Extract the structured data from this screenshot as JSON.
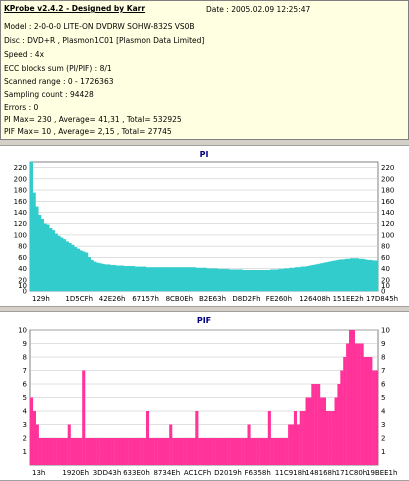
{
  "header": {
    "title": "KProbe v2.4.2 - Designed by Karr",
    "date": "Date : 2005.02.09 12:25:47",
    "lines": [
      "Model : 2-0-0-0 LITE-ON DVDRW SOHW-832S  VS0B",
      "Disc : DVD+R , Plasmon1C01 [Plasmon Data Limited]",
      "Speed : 4x",
      "ECC blocks sum (PI/PIF) : 8/1",
      "Scanned range : 0 - 1726363",
      "Sampling count : 94428",
      "Errors : 0",
      "PI Max= 230 , Average= 41,31 , Total= 532925",
      "PIF Max= 10 , Average= 2,15 , Total= 27745"
    ]
  },
  "colors": {
    "pi_fill": "#33cccc",
    "pif_fill": "#ff3399",
    "grid": "#c0c0c0",
    "title": "#000080"
  },
  "chart_data": [
    {
      "type": "area",
      "title": "PI",
      "ylim": [
        0,
        230
      ],
      "y_ticks": [
        "0",
        "10",
        "20",
        "40",
        "60",
        "80",
        "100",
        "120",
        "140",
        "160",
        "180",
        "200",
        "220"
      ],
      "x_tick_labels": [
        "129h",
        "1D5CFh",
        "42E26h",
        "67157h",
        "8CB0Eh",
        "B2E63h",
        "D8D2Fh",
        "FE260h",
        "126408h",
        "151EE2h",
        "17D845h"
      ],
      "grid": true,
      "values": [
        230,
        175,
        150,
        135,
        128,
        120,
        118,
        112,
        108,
        102,
        98,
        95,
        92,
        88,
        85,
        82,
        78,
        75,
        72,
        70,
        68,
        60,
        55,
        52,
        50,
        49,
        48,
        47,
        47,
        46,
        46,
        45,
        45,
        45,
        44,
        44,
        44,
        44,
        43,
        43,
        43,
        43,
        42,
        42,
        42,
        42,
        42,
        42,
        42,
        42,
        42,
        42,
        42,
        42,
        42,
        42,
        42,
        42,
        42,
        42,
        41,
        41,
        41,
        41,
        40,
        40,
        40,
        40,
        39,
        39,
        39,
        39,
        38,
        38,
        38,
        38,
        38,
        37,
        37,
        37,
        37,
        37,
        37,
        37,
        37,
        37,
        37,
        38,
        38,
        38,
        39,
        39,
        40,
        40,
        41,
        41,
        42,
        42,
        43,
        43,
        44,
        45,
        46,
        47,
        48,
        49,
        50,
        51,
        52,
        53,
        54,
        55,
        56,
        56,
        57,
        57,
        58,
        58,
        58,
        57,
        57,
        56,
        55,
        55,
        54,
        54
      ]
    },
    {
      "type": "bar",
      "title": "PIF",
      "ylim": [
        0,
        10
      ],
      "y_ticks": [
        "1",
        "2",
        "3",
        "4",
        "5",
        "6",
        "7",
        "8",
        "9",
        "10"
      ],
      "x_tick_labels": [
        "13h",
        "1920Eh",
        "3DD43h",
        "633E0h",
        "8734Eh",
        "AC1CFh",
        "D2019h",
        "F6358h",
        "11C918h",
        "148168h",
        "171C80h",
        "19BEE1h"
      ],
      "grid": true,
      "values": [
        5,
        4,
        3,
        2,
        2,
        2,
        2,
        2,
        2,
        2,
        2,
        2,
        2,
        2,
        2,
        2,
        2,
        2,
        2,
        2,
        2,
        2,
        2,
        2,
        2,
        2,
        2,
        2,
        2,
        2,
        2,
        2,
        2,
        2,
        2,
        2,
        2,
        2,
        2,
        2,
        2,
        2,
        2,
        2,
        2,
        2,
        2,
        2,
        2,
        2,
        2,
        2,
        2,
        2,
        2,
        2,
        2,
        2,
        2,
        2,
        2,
        2,
        2,
        2,
        2,
        2,
        2,
        2,
        2,
        2,
        2,
        2,
        2,
        2,
        2,
        2,
        2,
        2,
        2,
        2,
        2,
        2,
        2,
        2,
        2,
        2,
        2,
        2,
        2,
        3,
        3,
        3,
        3,
        4,
        4,
        5,
        5,
        6,
        6,
        6,
        5,
        5,
        4,
        4,
        4,
        5,
        6,
        7,
        8,
        9,
        10,
        10,
        9,
        9,
        9,
        8,
        8,
        8,
        7,
        7
      ],
      "peaks": [
        0,
        0,
        0,
        0,
        0,
        0,
        0,
        0,
        0,
        0,
        0,
        0,
        0,
        3,
        0,
        0,
        0,
        0,
        7,
        0,
        0,
        0,
        0,
        0,
        0,
        0,
        0,
        0,
        0,
        0,
        0,
        0,
        0,
        0,
        0,
        0,
        0,
        0,
        0,
        0,
        4,
        0,
        0,
        0,
        0,
        0,
        0,
        0,
        3,
        0,
        0,
        0,
        0,
        0,
        0,
        0,
        0,
        4,
        0,
        0,
        0,
        0,
        0,
        0,
        0,
        0,
        0,
        0,
        0,
        0,
        0,
        0,
        0,
        0,
        0,
        3,
        0,
        0,
        0,
        0,
        0,
        0,
        4,
        0,
        0,
        0,
        0,
        0,
        0,
        0,
        0,
        4,
        0,
        0,
        0,
        0,
        0,
        0,
        0,
        0,
        0,
        0,
        0,
        0,
        0,
        0,
        0,
        0,
        0,
        0,
        0,
        0,
        0,
        0,
        0,
        0,
        0,
        0,
        0,
        0
      ]
    }
  ]
}
